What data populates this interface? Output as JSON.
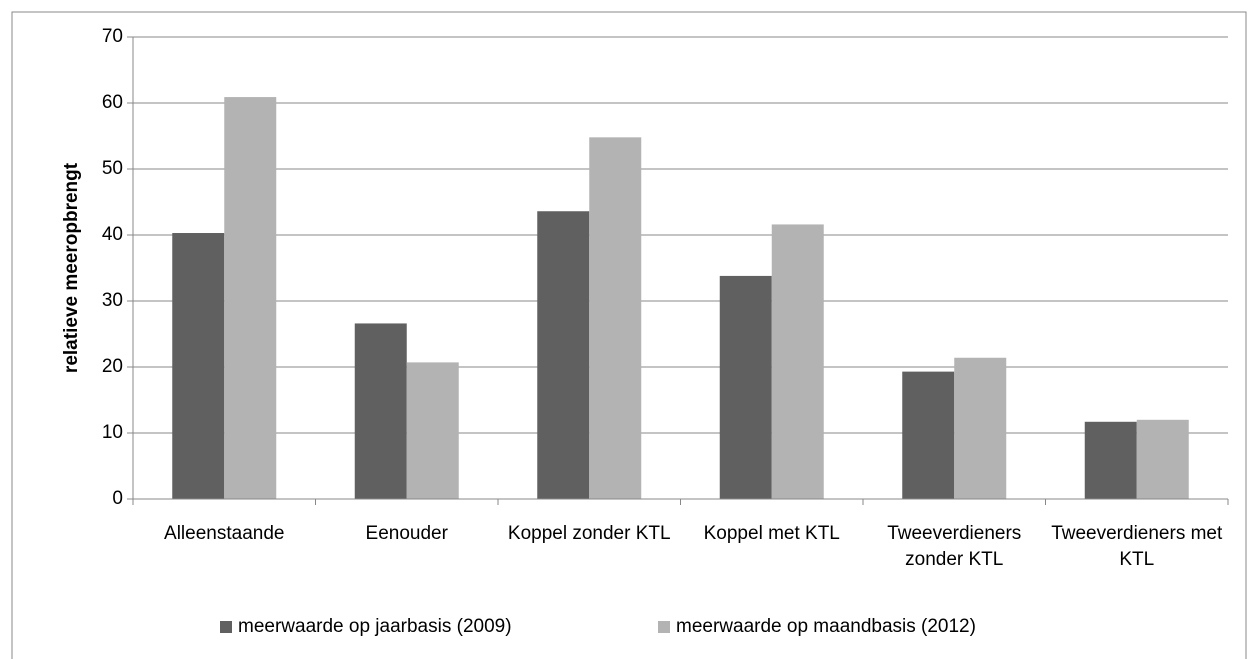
{
  "chart_data": {
    "type": "bar",
    "y_label": "relatieve meeropbrengt",
    "categories": [
      "Alleenstaande",
      "Eenouder",
      "Koppel zonder KTL",
      "Koppel met KTL",
      "Tweeverdieners zonder KTL",
      "Tweeverdieners met KTL"
    ],
    "series": [
      {
        "name": "meerwaarde op jaarbasis (2009)",
        "color": "#606060",
        "values": [
          40.3,
          26.6,
          43.6,
          33.8,
          19.3,
          11.7
        ]
      },
      {
        "name": "meerwaarde op maandbasis (2012)",
        "color": "#b3b3b3",
        "values": [
          60.9,
          20.7,
          54.8,
          41.6,
          21.4,
          12.0
        ]
      }
    ],
    "ylim": [
      0,
      70
    ],
    "yticks": [
      0,
      10,
      20,
      30,
      40,
      50,
      60,
      70
    ],
    "grid": true,
    "legend": "bottom"
  }
}
